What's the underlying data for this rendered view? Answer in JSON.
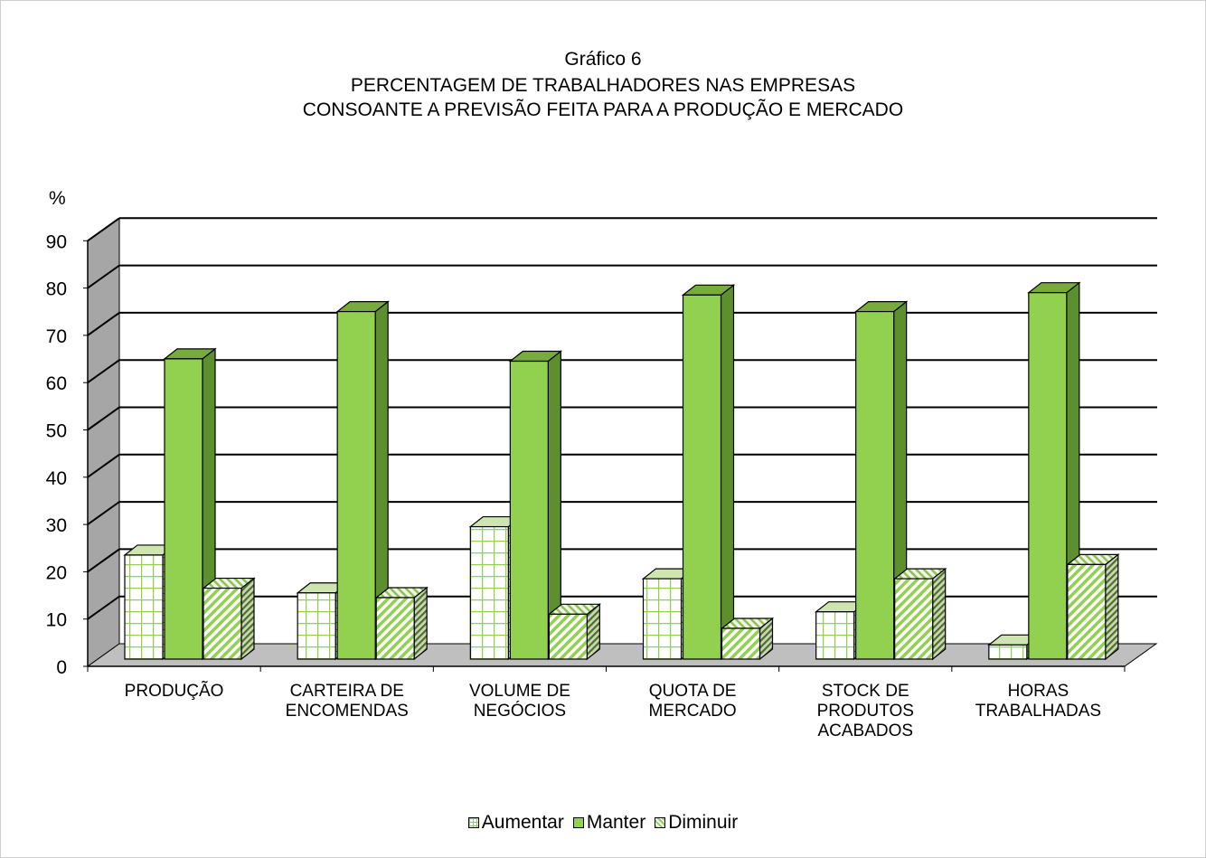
{
  "chart_data": {
    "type": "bar",
    "title_lines": [
      "Gráfico 6",
      "PERCENTAGEM DE TRABALHADORES NAS EMPRESAS",
      "CONSOANTE A PREVISÃO FEITA PARA A PRODUÇÃO E MERCADO"
    ],
    "ylabel": "%",
    "ylim": [
      0,
      90
    ],
    "yticks": [
      0,
      10,
      20,
      30,
      40,
      50,
      60,
      70,
      80,
      90
    ],
    "grid": true,
    "legend_position": "bottom",
    "categories": [
      [
        "PRODUÇÃO"
      ],
      [
        "CARTEIRA DE",
        "ENCOMENDAS"
      ],
      [
        "VOLUME DE",
        "NEGÓCIOS"
      ],
      [
        "QUOTA DE",
        "MERCADO"
      ],
      [
        "STOCK DE",
        "PRODUTOS",
        "ACABADOS"
      ],
      [
        "HORAS",
        "TRABALHADAS"
      ]
    ],
    "series": [
      {
        "name": "Aumentar",
        "values": [
          22,
          14,
          28,
          17,
          10,
          3
        ],
        "color": "#ffffff",
        "pattern": "grid-green"
      },
      {
        "name": "Manter",
        "values": [
          63.5,
          73.5,
          63,
          77,
          73.5,
          77.5
        ],
        "color": "#92d050",
        "pattern": "solid"
      },
      {
        "name": "Diminuir",
        "values": [
          15,
          13,
          9.5,
          6.5,
          17,
          20
        ],
        "color": "#92d050",
        "pattern": "diagonal"
      }
    ]
  }
}
